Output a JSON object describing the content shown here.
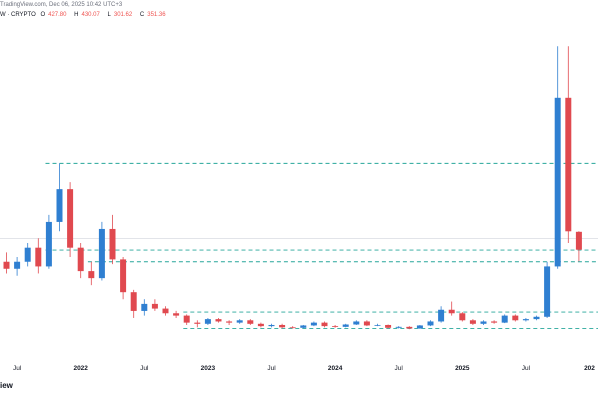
{
  "header": {
    "attribution": "TradingView.com, Dec 06, 2025 10:42 UTC+3",
    "symbol": "W · CRYPTO",
    "ohlc": [
      {
        "label": "O",
        "value": "427.80"
      },
      {
        "label": "H",
        "value": "430.07"
      },
      {
        "label": "L",
        "value": "301.62"
      },
      {
        "label": "C",
        "value": "351.36"
      }
    ]
  },
  "footer": {
    "brand_fragment": "iew"
  },
  "colors": {
    "up": "#2f7fd1",
    "down": "#e0494f",
    "level_line": "#26a69a",
    "price_line": "#d1d4dc"
  },
  "chart_data": {
    "type": "candlestick",
    "x_tick_labels": [
      {
        "label": "Jul",
        "date": "2021-07"
      },
      {
        "label": "2022",
        "date": "2022-01"
      },
      {
        "label": "Jul",
        "date": "2022-07"
      },
      {
        "label": "2023",
        "date": "2023-01"
      },
      {
        "label": "Jul",
        "date": "2023-07"
      },
      {
        "label": "2024",
        "date": "2024-01"
      },
      {
        "label": "Jul",
        "date": "2024-07"
      },
      {
        "label": "2025",
        "date": "2025-01"
      },
      {
        "label": "Jul",
        "date": "2025-07"
      },
      {
        "label": "202",
        "date": "2026-01"
      }
    ],
    "horizontal_levels": [
      {
        "value": 720,
        "from": "2021-11"
      },
      {
        "value": 350,
        "from": "2021-11"
      },
      {
        "value": 300,
        "from": "2022-03"
      },
      {
        "value": 85,
        "from": "2022-12"
      },
      {
        "value": 15,
        "from": "2022-12"
      }
    ],
    "current_price_line": 400,
    "series": [
      {
        "candles": [
          [
            "2021-06",
            300,
            340,
            250,
            270
          ],
          [
            "2021-07",
            270,
            320,
            240,
            300
          ],
          [
            "2021-08",
            300,
            380,
            280,
            360
          ],
          [
            "2021-09",
            360,
            400,
            250,
            280
          ],
          [
            "2021-10",
            280,
            500,
            270,
            470
          ],
          [
            "2021-11",
            470,
            720,
            430,
            610
          ],
          [
            "2021-12",
            610,
            640,
            320,
            360
          ],
          [
            "2022-01",
            360,
            380,
            230,
            260
          ],
          [
            "2022-02",
            260,
            300,
            200,
            230
          ],
          [
            "2022-03",
            230,
            470,
            220,
            440
          ],
          [
            "2022-04",
            440,
            500,
            290,
            310
          ],
          [
            "2022-05",
            310,
            320,
            140,
            170
          ],
          [
            "2022-06",
            170,
            180,
            60,
            90
          ],
          [
            "2022-07",
            90,
            140,
            70,
            120
          ],
          [
            "2022-08",
            120,
            140,
            90,
            100
          ],
          [
            "2022-09",
            100,
            110,
            70,
            80
          ],
          [
            "2022-10",
            80,
            90,
            60,
            70
          ],
          [
            "2022-11",
            70,
            75,
            30,
            40
          ],
          [
            "2022-12",
            40,
            50,
            20,
            35
          ],
          [
            "2023-01",
            35,
            60,
            30,
            55
          ],
          [
            "2023-02",
            55,
            60,
            40,
            45
          ],
          [
            "2023-03",
            45,
            50,
            30,
            40
          ],
          [
            "2023-04",
            40,
            55,
            35,
            50
          ],
          [
            "2023-05",
            50,
            55,
            30,
            35
          ],
          [
            "2023-06",
            35,
            40,
            20,
            25
          ],
          [
            "2023-07",
            25,
            35,
            20,
            30
          ],
          [
            "2023-08",
            30,
            35,
            15,
            20
          ],
          [
            "2023-09",
            20,
            25,
            15,
            18
          ],
          [
            "2023-10",
            18,
            30,
            15,
            28
          ],
          [
            "2023-11",
            28,
            45,
            25,
            40
          ],
          [
            "2023-12",
            40,
            45,
            20,
            25
          ],
          [
            "2024-01",
            25,
            30,
            18,
            22
          ],
          [
            "2024-02",
            22,
            35,
            20,
            32
          ],
          [
            "2024-03",
            32,
            50,
            30,
            45
          ],
          [
            "2024-04",
            45,
            50,
            25,
            28
          ],
          [
            "2024-05",
            28,
            35,
            25,
            30
          ],
          [
            "2024-06",
            30,
            32,
            15,
            18
          ],
          [
            "2024-07",
            18,
            25,
            15,
            22
          ],
          [
            "2024-08",
            22,
            25,
            12,
            15
          ],
          [
            "2024-09",
            15,
            30,
            14,
            28
          ],
          [
            "2024-10",
            28,
            50,
            25,
            45
          ],
          [
            "2024-11",
            45,
            110,
            40,
            95
          ],
          [
            "2024-12",
            95,
            130,
            70,
            80
          ],
          [
            "2025-01",
            80,
            85,
            45,
            50
          ],
          [
            "2025-02",
            50,
            55,
            30,
            35
          ],
          [
            "2025-03",
            35,
            50,
            30,
            45
          ],
          [
            "2025-04",
            45,
            50,
            35,
            40
          ],
          [
            "2025-05",
            40,
            75,
            38,
            70
          ],
          [
            "2025-06",
            70,
            75,
            45,
            50
          ],
          [
            "2025-07",
            50,
            60,
            45,
            55
          ],
          [
            "2025-08",
            55,
            70,
            50,
            65
          ],
          [
            "2025-09",
            65,
            300,
            60,
            280
          ],
          [
            "2025-10",
            280,
            1220,
            270,
            1000
          ],
          [
            "2025-11",
            1000,
            1220,
            380,
            430
          ],
          [
            "2025-12",
            427.8,
            430.07,
            301.62,
            351.36
          ]
        ]
      }
    ]
  }
}
